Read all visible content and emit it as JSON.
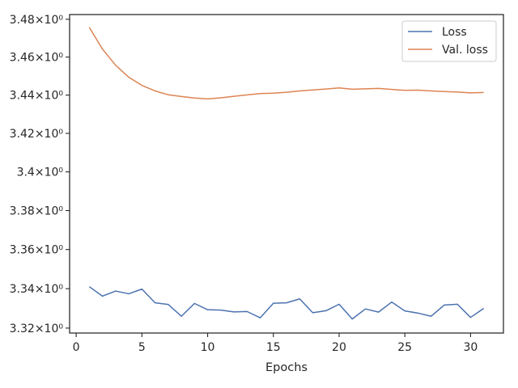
{
  "chart_data": {
    "type": "line",
    "title": "",
    "xlabel": "Epochs",
    "ylabel": "",
    "yscale": "log",
    "xlim": [
      -0.5,
      32.5
    ],
    "ylim": [
      3.3175,
      3.4825
    ],
    "grid": false,
    "legend_position": "upper right",
    "x_ticks": [
      0,
      5,
      10,
      15,
      20,
      25,
      30
    ],
    "x_tick_labels": [
      "0",
      "5",
      "10",
      "15",
      "20",
      "25",
      "30"
    ],
    "y_ticks": [
      3.32,
      3.34,
      3.36,
      3.38,
      3.4,
      3.42,
      3.44,
      3.46,
      3.48
    ],
    "y_tick_labels": [
      "3.32×10⁰",
      "3.34×10⁰",
      "3.36×10⁰",
      "3.38×10⁰",
      "3.4×10⁰",
      "3.42×10⁰",
      "3.44×10⁰",
      "3.46×10⁰",
      "3.48×10⁰"
    ],
    "x": [
      1,
      2,
      3,
      4,
      5,
      6,
      7,
      8,
      9,
      10,
      11,
      12,
      13,
      14,
      15,
      16,
      17,
      18,
      19,
      20,
      21,
      22,
      23,
      24,
      25,
      26,
      27,
      28,
      29,
      30,
      31
    ],
    "series": [
      {
        "name": "Loss",
        "color": "#4c72b0",
        "values": [
          3.341,
          3.3362,
          3.3388,
          3.3374,
          3.3398,
          3.3328,
          3.332,
          3.326,
          3.3325,
          3.3293,
          3.3291,
          3.3282,
          3.3284,
          3.3252,
          3.3326,
          3.3328,
          3.3348,
          3.3278,
          3.3288,
          3.3321,
          3.3246,
          3.3297,
          3.3281,
          3.3332,
          3.3287,
          3.3276,
          3.326,
          3.3317,
          3.3321,
          3.3254,
          3.33
        ]
      },
      {
        "name": "Val. loss",
        "color": "#dd8452",
        "values": [
          3.4757,
          3.4642,
          3.4557,
          3.4494,
          3.4451,
          3.4422,
          3.4402,
          3.4393,
          3.4385,
          3.438,
          3.4386,
          3.4394,
          3.4401,
          3.4408,
          3.441,
          3.4415,
          3.4422,
          3.4427,
          3.4432,
          3.4438,
          3.4431,
          3.4433,
          3.4435,
          3.443,
          3.4425,
          3.4426,
          3.4422,
          3.4419,
          3.4416,
          3.4412,
          3.4414
        ]
      }
    ]
  }
}
